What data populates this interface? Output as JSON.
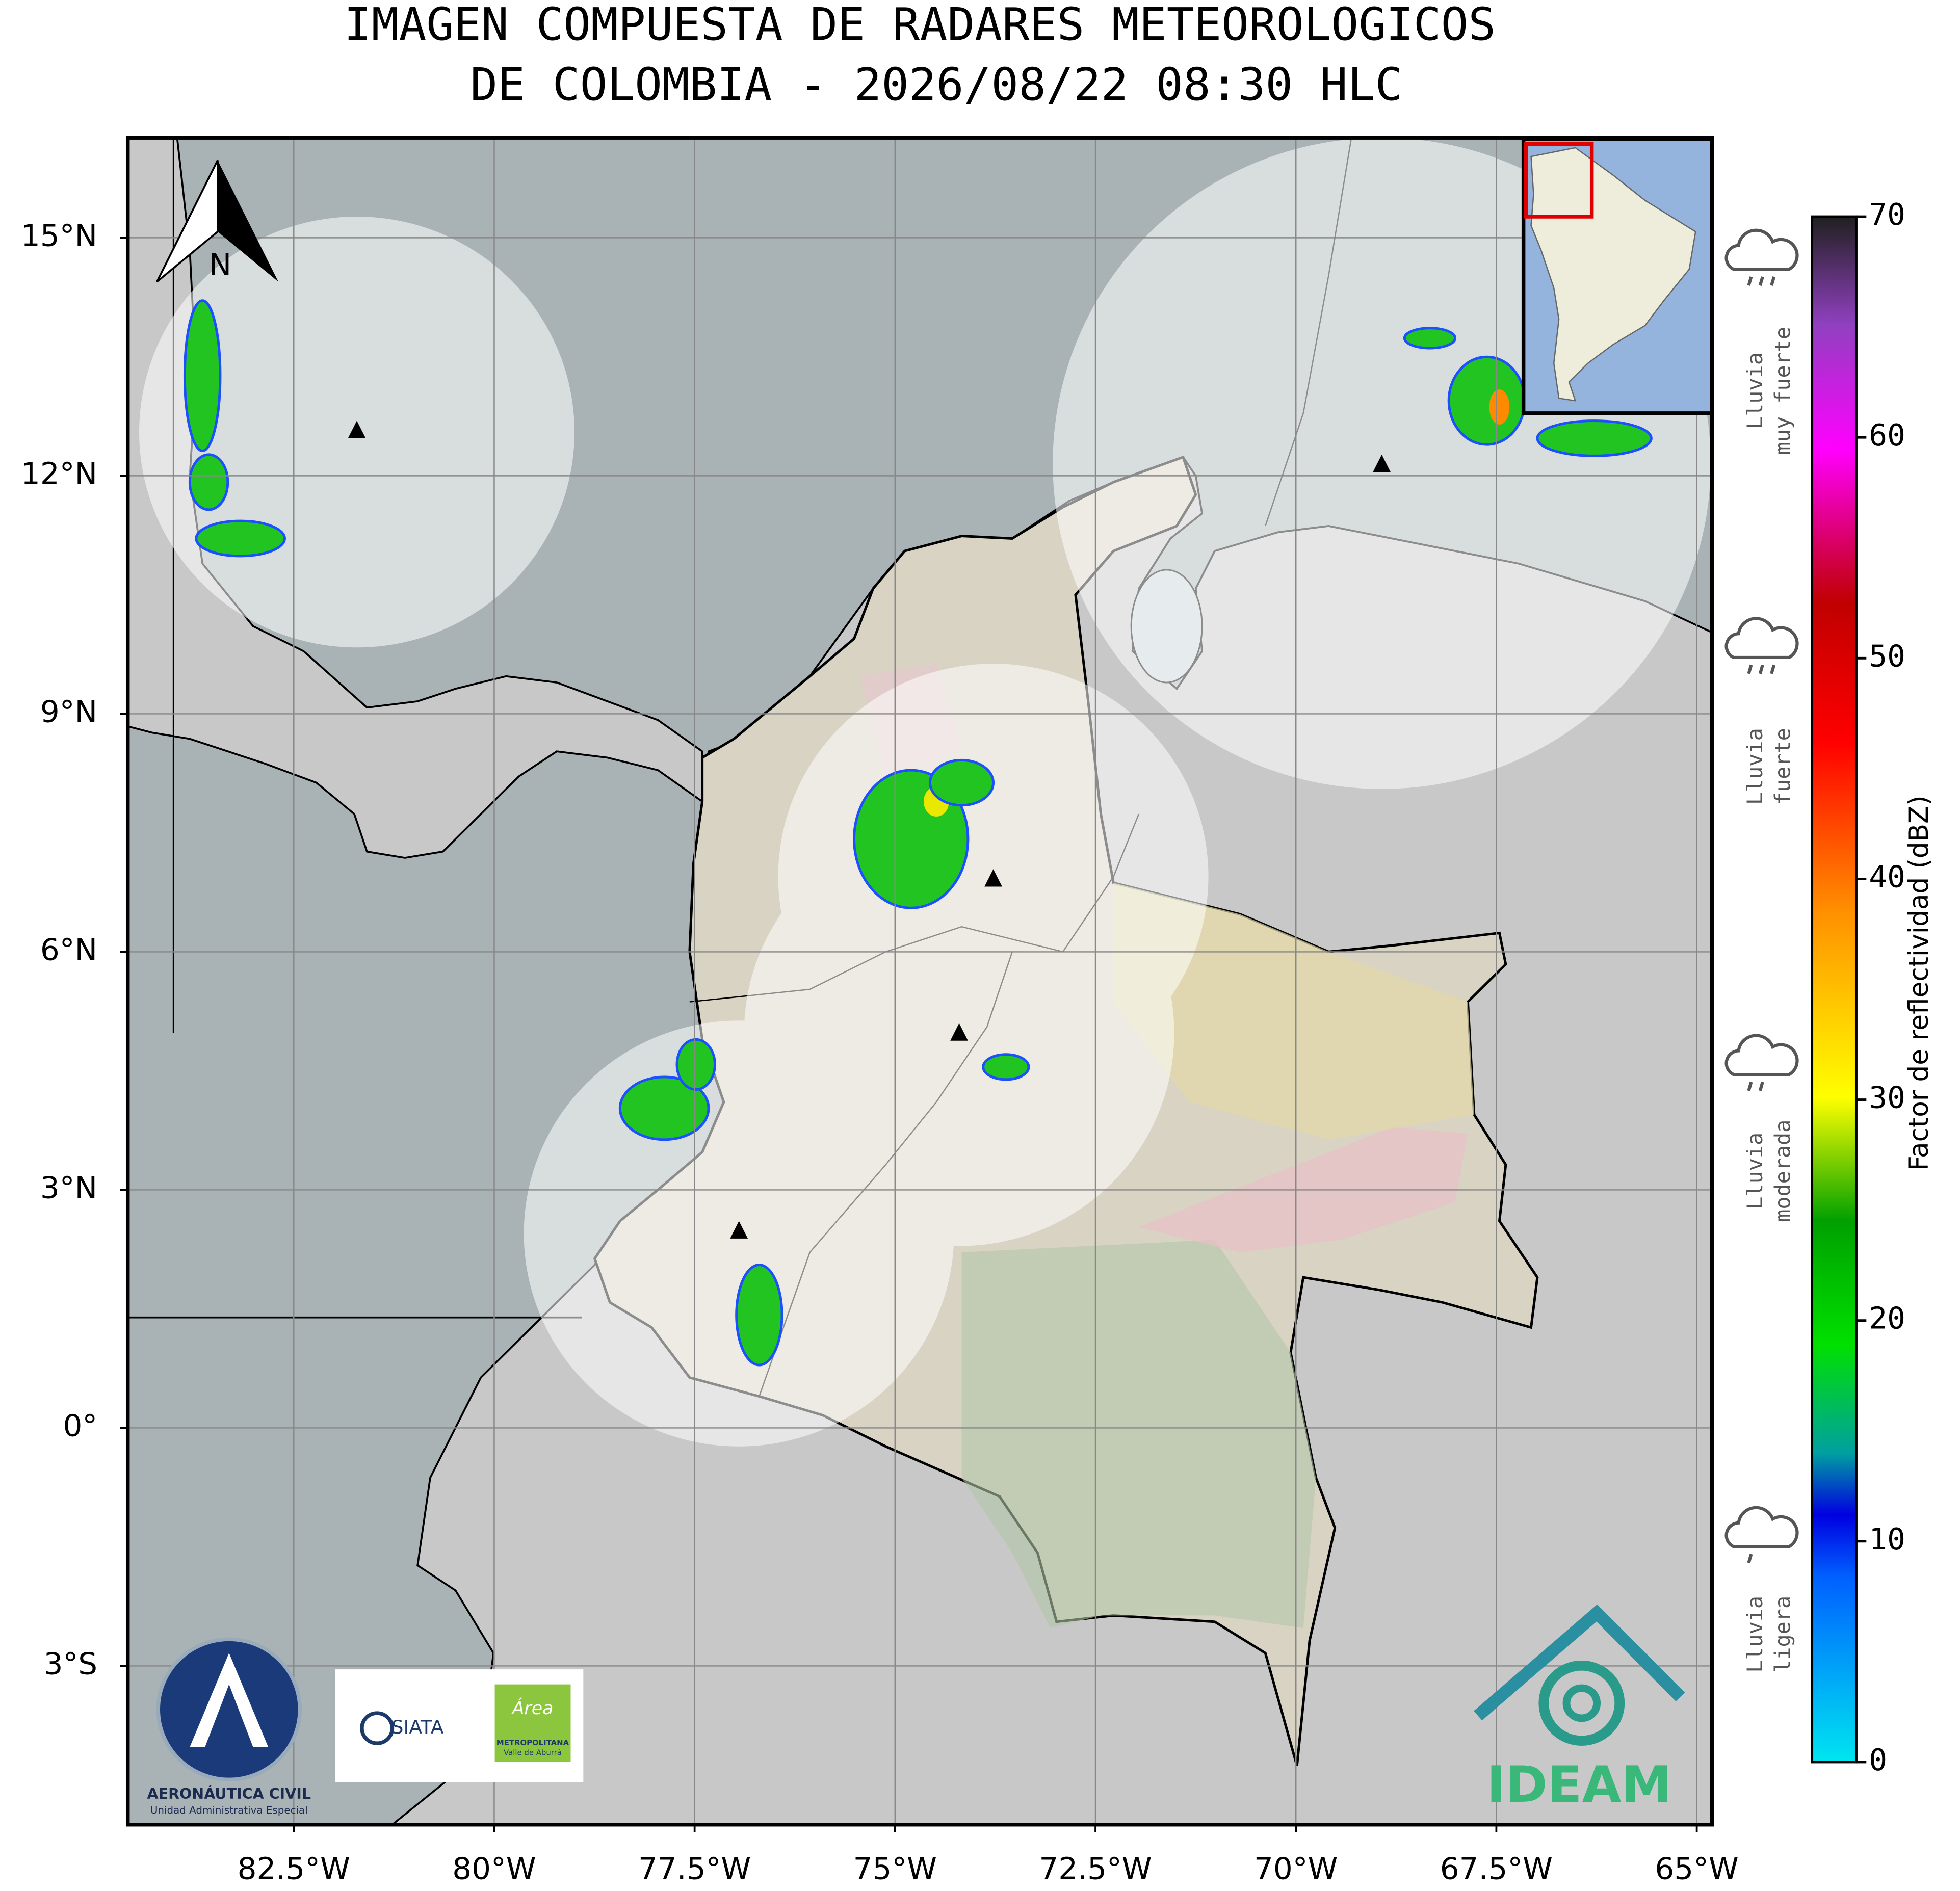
{
  "title": [
    "IMAGEN COMPUESTA DE RADARES METEOROLOGICOS",
    "DE COLOMBIA - 2026/08/22 08:30 HLC"
  ],
  "map": {
    "lon_range": [
      -84.57,
      -64.81
    ],
    "lat_range": [
      -5.0,
      16.26
    ],
    "lon_ticks": [
      {
        "value": -82.5,
        "label": "82.5°W"
      },
      {
        "value": -80,
        "label": "80°W"
      },
      {
        "value": -77.5,
        "label": "77.5°W"
      },
      {
        "value": -75,
        "label": "75°W"
      },
      {
        "value": -72.5,
        "label": "72.5°W"
      },
      {
        "value": -70,
        "label": "70°W"
      },
      {
        "value": -67.5,
        "label": "67.5°W"
      },
      {
        "value": -65,
        "label": "65°W"
      }
    ],
    "lat_ticks": [
      {
        "value": 15,
        "label": "15°N"
      },
      {
        "value": 12,
        "label": "12°N"
      },
      {
        "value": 9,
        "label": "9°N"
      },
      {
        "value": 6,
        "label": "6°N"
      },
      {
        "value": 3,
        "label": "3°N"
      },
      {
        "value": 0,
        "label": "0°"
      },
      {
        "value": -3,
        "label": "3°S"
      }
    ],
    "north_label": "N"
  },
  "colorbar": {
    "label": "Factor de reflectividad (dBZ)",
    "range": [
      0,
      70
    ],
    "ticks": [
      0,
      10,
      20,
      30,
      40,
      50,
      60,
      70
    ]
  },
  "rain_legend": [
    {
      "lines": [
        "Lluvia",
        "muy fuerte"
      ]
    },
    {
      "lines": [
        "Lluvia",
        "fuerte"
      ]
    },
    {
      "lines": [
        "Lluvia",
        "moderada"
      ]
    },
    {
      "lines": [
        "Lluvia",
        "ligera"
      ]
    }
  ],
  "logos": {
    "aerocivil": [
      "AERONÁUTICA CIVIL",
      "Unidad Administrativa Especial"
    ],
    "siata": "SIATA",
    "area": [
      "Área",
      "METROPOLITANA",
      "Valle de Aburrá"
    ],
    "ideam": "IDEAM"
  }
}
